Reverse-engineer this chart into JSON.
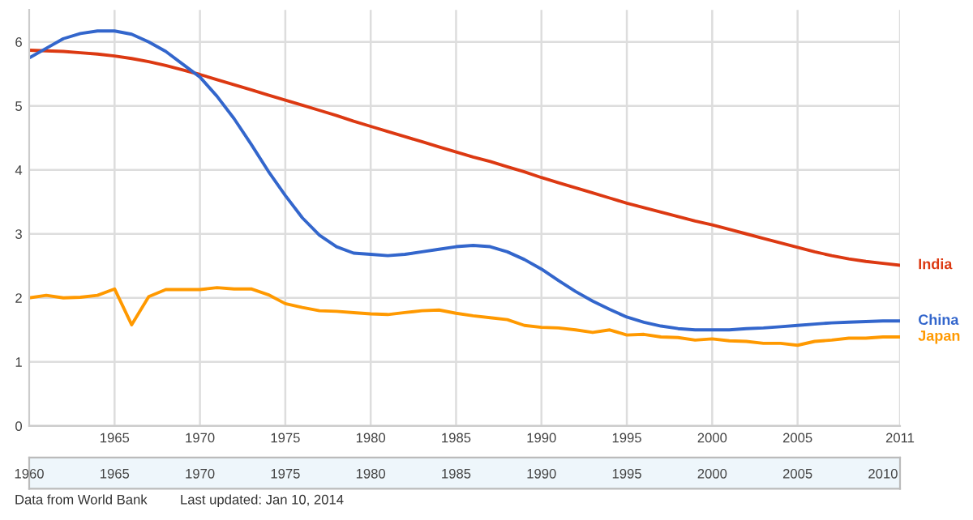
{
  "chart_data": [
    {
      "type": "line",
      "x": [
        1960,
        1961,
        1962,
        1963,
        1964,
        1965,
        1966,
        1967,
        1968,
        1969,
        1970,
        1971,
        1972,
        1973,
        1974,
        1975,
        1976,
        1977,
        1978,
        1979,
        1980,
        1981,
        1982,
        1983,
        1984,
        1985,
        1986,
        1987,
        1988,
        1989,
        1990,
        1991,
        1992,
        1993,
        1994,
        1995,
        1996,
        1997,
        1998,
        1999,
        2000,
        2001,
        2002,
        2003,
        2004,
        2005,
        2006,
        2007,
        2008,
        2009,
        2010,
        2011
      ],
      "series": [
        {
          "name": "India",
          "color": "#dc3912",
          "values": [
            5.87,
            5.86,
            5.85,
            5.83,
            5.81,
            5.78,
            5.74,
            5.69,
            5.63,
            5.56,
            5.49,
            5.41,
            5.33,
            5.25,
            5.17,
            5.09,
            5.01,
            4.93,
            4.85,
            4.76,
            4.68,
            4.6,
            4.52,
            4.44,
            4.36,
            4.28,
            4.2,
            4.13,
            4.05,
            3.97,
            3.88,
            3.8,
            3.72,
            3.64,
            3.56,
            3.48,
            3.41,
            3.34,
            3.27,
            3.2,
            3.14,
            3.07,
            3.0,
            2.93,
            2.86,
            2.79,
            2.72,
            2.66,
            2.61,
            2.57,
            2.54,
            2.51
          ]
        },
        {
          "name": "China",
          "color": "#3366cc",
          "values": [
            5.75,
            5.9,
            6.05,
            6.13,
            6.17,
            6.17,
            6.12,
            6.0,
            5.85,
            5.65,
            5.45,
            5.15,
            4.8,
            4.4,
            3.98,
            3.6,
            3.25,
            2.98,
            2.8,
            2.7,
            2.68,
            2.66,
            2.68,
            2.72,
            2.76,
            2.8,
            2.82,
            2.8,
            2.72,
            2.6,
            2.45,
            2.27,
            2.1,
            1.95,
            1.82,
            1.7,
            1.62,
            1.56,
            1.52,
            1.5,
            1.5,
            1.5,
            1.52,
            1.53,
            1.55,
            1.57,
            1.59,
            1.61,
            1.62,
            1.63,
            1.64,
            1.64
          ]
        },
        {
          "name": "Japan",
          "color": "#ff9900",
          "values": [
            2.0,
            2.04,
            2.0,
            2.01,
            2.04,
            2.14,
            1.58,
            2.02,
            2.13,
            2.13,
            2.13,
            2.16,
            2.14,
            2.14,
            2.05,
            1.91,
            1.85,
            1.8,
            1.79,
            1.77,
            1.75,
            1.74,
            1.77,
            1.8,
            1.81,
            1.76,
            1.72,
            1.69,
            1.66,
            1.57,
            1.54,
            1.53,
            1.5,
            1.46,
            1.5,
            1.42,
            1.43,
            1.39,
            1.38,
            1.34,
            1.36,
            1.33,
            1.32,
            1.29,
            1.29,
            1.26,
            1.32,
            1.34,
            1.37,
            1.37,
            1.39,
            1.39
          ]
        }
      ],
      "xlim": [
        1960,
        2011
      ],
      "xticks": [
        1965,
        1970,
        1975,
        1980,
        1985,
        1990,
        1995,
        2000,
        2005,
        2011
      ],
      "ylim": [
        0,
        6.5
      ],
      "yticks": [
        0,
        1,
        2,
        3,
        4,
        5,
        6
      ],
      "grid": true,
      "legend": false,
      "marker": "none",
      "line_style": "solid",
      "x2lim": [
        1960,
        2011
      ],
      "x2ticks": [
        1960,
        1965,
        1970,
        1975,
        1980,
        1985,
        1990,
        1995,
        2000,
        2005,
        2010
      ],
      "annotations": [
        "Data from World Bank",
        "Last updated: Jan 10, 2014"
      ]
    }
  ]
}
